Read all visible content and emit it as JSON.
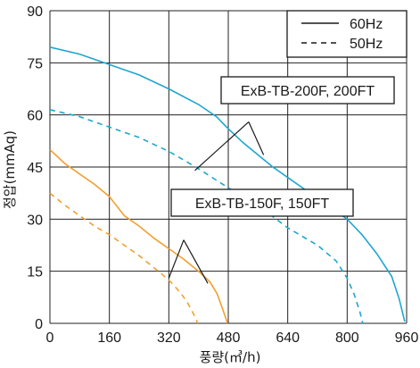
{
  "chart_data": {
    "type": "line",
    "xlabel": "풍량(㎥/h)",
    "ylabel": "정압(mmAq)",
    "xlim": [
      0,
      960
    ],
    "ylim": [
      0,
      90
    ],
    "xticks": [
      "0",
      "160",
      "320",
      "480",
      "640",
      "800",
      "960"
    ],
    "yticks": [
      "0",
      "15",
      "30",
      "45",
      "60",
      "75",
      "90"
    ],
    "grid": true,
    "legend": {
      "position": "top-right",
      "entries": [
        {
          "label": "60Hz",
          "style": "solid"
        },
        {
          "label": "50Hz",
          "style": "dashed"
        }
      ]
    },
    "series": [
      {
        "model": "ExB-TB-200F, 200FT",
        "freq": "60Hz",
        "color": "#1ea6cf",
        "dash": false,
        "points": [
          [
            0,
            79.5
          ],
          [
            80,
            77.5
          ],
          [
            160,
            74.5
          ],
          [
            240,
            71.5
          ],
          [
            320,
            67.5
          ],
          [
            400,
            63
          ],
          [
            448,
            59.5
          ],
          [
            480,
            56
          ],
          [
            520,
            52
          ],
          [
            560,
            48.5
          ],
          [
            600,
            45
          ],
          [
            640,
            42
          ],
          [
            720,
            36
          ],
          [
            800,
            30
          ],
          [
            840,
            25.5
          ],
          [
            880,
            20
          ],
          [
            920,
            13.5
          ],
          [
            940,
            7
          ],
          [
            955,
            0.5
          ]
        ]
      },
      {
        "model": "ExB-TB-200F, 200FT",
        "freq": "50Hz",
        "color": "#1ea6cf",
        "dash": true,
        "points": [
          [
            0,
            61.5
          ],
          [
            80,
            59.5
          ],
          [
            160,
            56.5
          ],
          [
            240,
            53.5
          ],
          [
            320,
            49.5
          ],
          [
            400,
            44.5
          ],
          [
            480,
            39
          ],
          [
            560,
            34
          ],
          [
            640,
            27.5
          ],
          [
            720,
            22.5
          ],
          [
            770,
            18
          ],
          [
            800,
            13
          ],
          [
            820,
            8
          ],
          [
            835,
            3
          ],
          [
            842,
            0
          ]
        ]
      },
      {
        "model": "ExB-TB-150F, 150FT",
        "freq": "60Hz",
        "color": "#f0a030",
        "dash": false,
        "points": [
          [
            0,
            50
          ],
          [
            40,
            46
          ],
          [
            80,
            43
          ],
          [
            120,
            40
          ],
          [
            160,
            36.5
          ],
          [
            200,
            31
          ],
          [
            240,
            28
          ],
          [
            280,
            24.5
          ],
          [
            320,
            21.5
          ],
          [
            360,
            18.5
          ],
          [
            400,
            15
          ],
          [
            430,
            12
          ],
          [
            450,
            8.5
          ],
          [
            465,
            4
          ],
          [
            478,
            0
          ]
        ]
      },
      {
        "model": "ExB-TB-150F, 150FT",
        "freq": "50Hz",
        "color": "#f0a030",
        "dash": true,
        "points": [
          [
            0,
            37.5
          ],
          [
            40,
            34
          ],
          [
            80,
            31
          ],
          [
            120,
            28
          ],
          [
            160,
            25.5
          ],
          [
            200,
            22.5
          ],
          [
            240,
            19.5
          ],
          [
            280,
            16
          ],
          [
            320,
            12.5
          ],
          [
            350,
            9
          ],
          [
            370,
            6
          ],
          [
            390,
            2
          ],
          [
            398,
            0
          ]
        ]
      }
    ],
    "annotations": [
      {
        "text": "ExB-TB-200F, 200FT",
        "points_to": [
          [
            390,
            44
          ],
          [
            575,
            48.5
          ]
        ],
        "junction": [
          535,
          58
        ]
      },
      {
        "text": "ExB-TB-150F, 150FT",
        "points_to": [
          [
            320,
            13
          ],
          [
            425,
            11.5
          ]
        ],
        "junction": [
          360,
          24
        ]
      }
    ]
  }
}
